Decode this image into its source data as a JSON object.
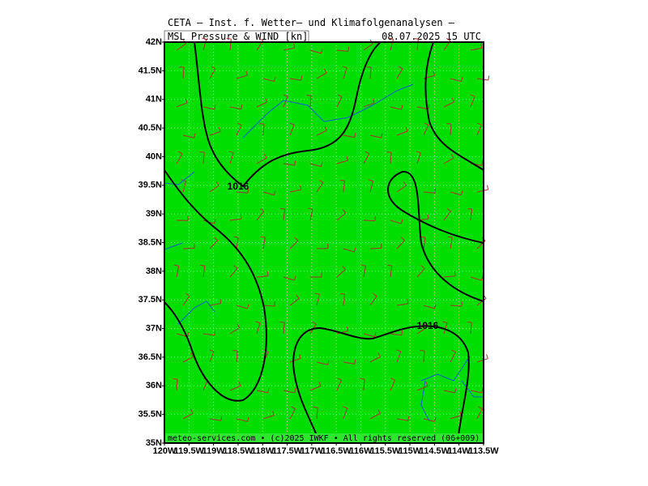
{
  "header": {
    "title": "CETA — Inst. f. Wetter— und Klimafolgenanalysen —",
    "product": "MSL_Pressure_&_WIND_[kn]",
    "date": "08.07.2025 15 UTC"
  },
  "map": {
    "lon_ticks": [
      {
        "value": -120,
        "label": "120W"
      },
      {
        "value": -119.5,
        "label": "119.5W"
      },
      {
        "value": -119,
        "label": "119W"
      },
      {
        "value": -118.5,
        "label": "118.5W"
      },
      {
        "value": -118,
        "label": "118W"
      },
      {
        "value": -117.5,
        "label": "117.5W"
      },
      {
        "value": -117,
        "label": "117W"
      },
      {
        "value": -116.5,
        "label": "116.5W"
      },
      {
        "value": -116,
        "label": "116W"
      },
      {
        "value": -115.5,
        "label": "115.5W"
      },
      {
        "value": -115,
        "label": "115W"
      },
      {
        "value": -114.5,
        "label": "114.5W"
      },
      {
        "value": -114,
        "label": "114W"
      },
      {
        "value": -113.5,
        "label": "113.5W"
      }
    ],
    "lat_ticks": [
      {
        "value": 35,
        "label": "35N"
      },
      {
        "value": 35.5,
        "label": "35.5N"
      },
      {
        "value": 36,
        "label": "36N"
      },
      {
        "value": 36.5,
        "label": "36.5N"
      },
      {
        "value": 37,
        "label": "37N"
      },
      {
        "value": 37.5,
        "label": "37.5N"
      },
      {
        "value": 38,
        "label": "38N"
      },
      {
        "value": 38.5,
        "label": "38.5N"
      },
      {
        "value": 39,
        "label": "39N"
      },
      {
        "value": 39.5,
        "label": "39.5N"
      },
      {
        "value": 40,
        "label": "40N"
      },
      {
        "value": 40.5,
        "label": "40.5N"
      },
      {
        "value": 41,
        "label": "41N"
      },
      {
        "value": 41.5,
        "label": "41.5N"
      },
      {
        "value": 42,
        "label": "42N"
      }
    ],
    "contour_labels": [
      "1016",
      "1016"
    ],
    "footer": "meteo-services.com • (c)2025 IWKF • All rights reserved (06+009)"
  }
}
